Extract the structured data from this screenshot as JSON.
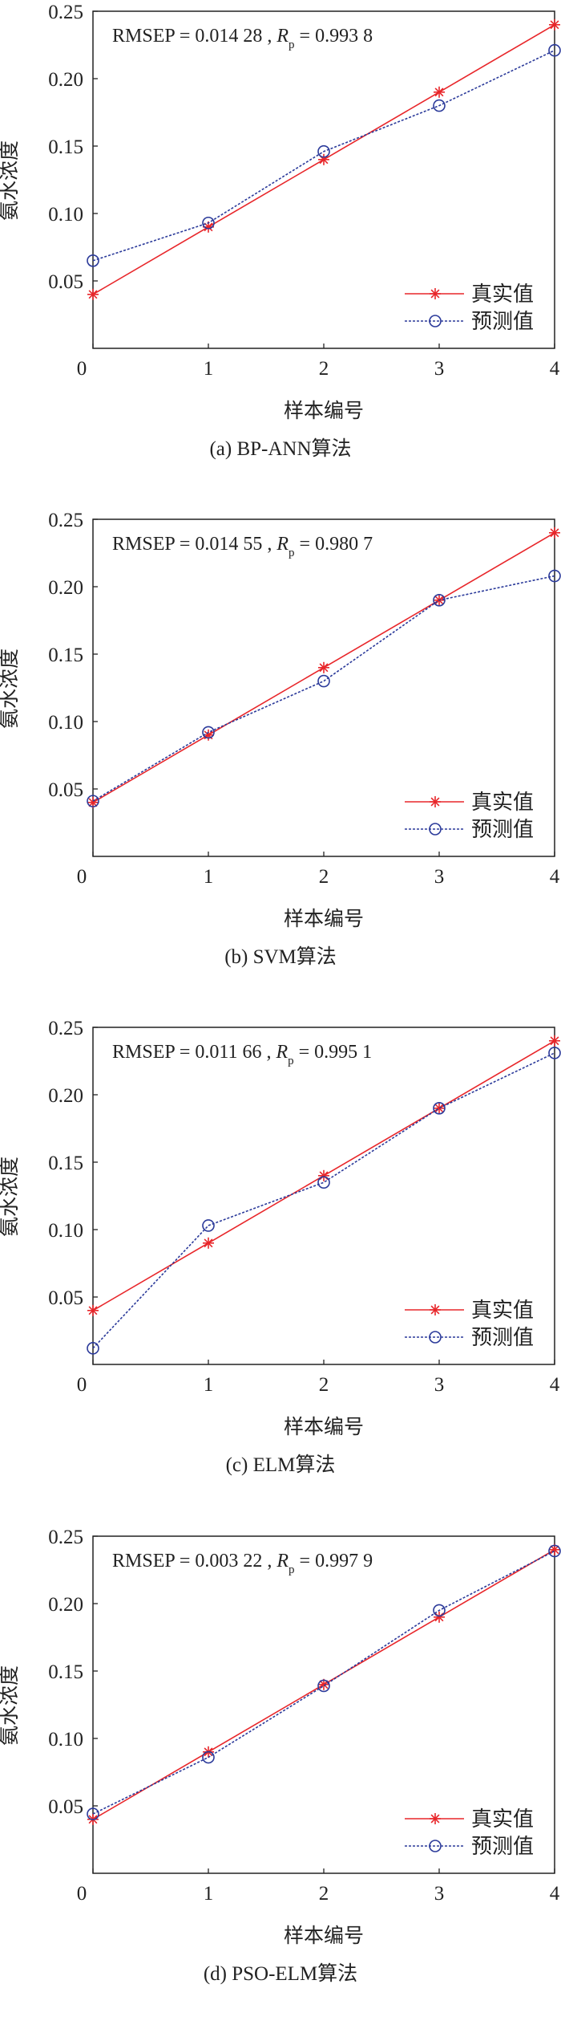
{
  "chart_data": [
    {
      "type": "line",
      "caption": "(a) BP-ANN算法",
      "xlabel": "样本编号",
      "ylabel": "氨水浓度",
      "x": [
        0,
        1,
        2,
        3,
        4
      ],
      "xticks": [
        "0",
        "1",
        "2",
        "3",
        "4"
      ],
      "yticks": [
        "0.05",
        "0.10",
        "0.15",
        "0.20",
        "0.25"
      ],
      "ylim": [
        0,
        0.25
      ],
      "xlim": [
        0,
        4
      ],
      "annotation": {
        "rmsep_label": "RMSEP",
        "rmsep": "0.014 28",
        "rp_label": "R",
        "rp_sub": "p",
        "rp": "0.993 8"
      },
      "legend_position": "bottom-right",
      "series": [
        {
          "name": "真实值",
          "color": "#e8262a",
          "marker": "star",
          "dash": "solid",
          "values": [
            0.04,
            0.09,
            0.14,
            0.19,
            0.24
          ]
        },
        {
          "name": "预测值",
          "color": "#2b3a9a",
          "marker": "circle",
          "dash": "dotted",
          "values": [
            0.065,
            0.093,
            0.146,
            0.18,
            0.221
          ]
        }
      ]
    },
    {
      "type": "line",
      "caption": "(b) SVM算法",
      "xlabel": "样本编号",
      "ylabel": "氨水浓度",
      "x": [
        0,
        1,
        2,
        3,
        4
      ],
      "xticks": [
        "0",
        "1",
        "2",
        "3",
        "4"
      ],
      "yticks": [
        "0.05",
        "0.10",
        "0.15",
        "0.20",
        "0.25"
      ],
      "ylim": [
        0,
        0.25
      ],
      "xlim": [
        0,
        4
      ],
      "annotation": {
        "rmsep_label": "RMSEP",
        "rmsep": "0.014 55",
        "rp_label": "R",
        "rp_sub": "p",
        "rp": "0.980 7"
      },
      "legend_position": "bottom-right",
      "series": [
        {
          "name": "真实值",
          "color": "#e8262a",
          "marker": "star",
          "dash": "solid",
          "values": [
            0.04,
            0.09,
            0.14,
            0.19,
            0.24
          ]
        },
        {
          "name": "预测值",
          "color": "#2b3a9a",
          "marker": "circle",
          "dash": "dotted",
          "values": [
            0.041,
            0.092,
            0.13,
            0.19,
            0.208
          ]
        }
      ]
    },
    {
      "type": "line",
      "caption": "(c) ELM算法",
      "xlabel": "样本编号",
      "ylabel": "氨水浓度",
      "x": [
        0,
        1,
        2,
        3,
        4
      ],
      "xticks": [
        "0",
        "1",
        "2",
        "3",
        "4"
      ],
      "yticks": [
        "0.05",
        "0.10",
        "0.15",
        "0.20",
        "0.25"
      ],
      "ylim": [
        0,
        0.25
      ],
      "xlim": [
        0,
        4
      ],
      "annotation": {
        "rmsep_label": "RMSEP",
        "rmsep": "0.011 66",
        "rp_label": "R",
        "rp_sub": "p",
        "rp": "0.995 1"
      },
      "legend_position": "bottom-right",
      "series": [
        {
          "name": "真实值",
          "color": "#e8262a",
          "marker": "star",
          "dash": "solid",
          "values": [
            0.04,
            0.09,
            0.14,
            0.19,
            0.24
          ]
        },
        {
          "name": "预测值",
          "color": "#2b3a9a",
          "marker": "circle",
          "dash": "dotted",
          "values": [
            0.012,
            0.103,
            0.135,
            0.19,
            0.231
          ]
        }
      ]
    },
    {
      "type": "line",
      "caption": "(d) PSO-ELM算法",
      "xlabel": "样本编号",
      "ylabel": "氨水浓度",
      "x": [
        0,
        1,
        2,
        3,
        4
      ],
      "xticks": [
        "0",
        "1",
        "2",
        "3",
        "4"
      ],
      "yticks": [
        "0.05",
        "0.10",
        "0.15",
        "0.20",
        "0.25"
      ],
      "ylim": [
        0,
        0.25
      ],
      "xlim": [
        0,
        4
      ],
      "annotation": {
        "rmsep_label": "RMSEP",
        "rmsep": "0.003 22",
        "rp_label": "R",
        "rp_sub": "p",
        "rp": "0.997 9"
      },
      "legend_position": "bottom-right",
      "series": [
        {
          "name": "真实值",
          "color": "#e8262a",
          "marker": "star",
          "dash": "solid",
          "values": [
            0.04,
            0.09,
            0.14,
            0.19,
            0.24
          ]
        },
        {
          "name": "预测值",
          "color": "#2b3a9a",
          "marker": "circle",
          "dash": "dotted",
          "values": [
            0.044,
            0.086,
            0.139,
            0.195,
            0.239
          ]
        }
      ]
    }
  ]
}
